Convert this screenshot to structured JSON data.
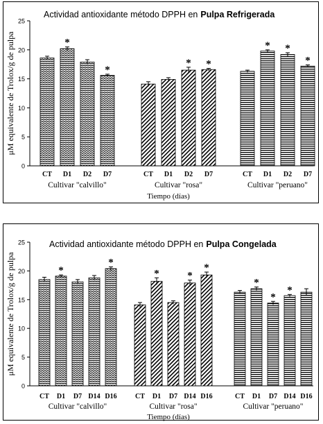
{
  "colors": {
    "ink": "#000000",
    "background": "#ffffff"
  },
  "chart_data": [
    {
      "type": "bar",
      "title": "Actividad antioxidante método DPPH en",
      "title_bold": "Pulpa Refrigerada",
      "ylabel": "μM equivalente de Trolox/g de pulpa",
      "xlabel": "Tiempo  (días)",
      "ylim": [
        0,
        25
      ],
      "yticks": [
        "0",
        "5",
        "10",
        "15",
        "20",
        "25"
      ],
      "grid": false,
      "groups": [
        {
          "name": "Cultivar \"calvillo\"",
          "pattern": "wave",
          "categories": [
            "CT",
            "D1",
            "D2",
            "D7"
          ],
          "values": [
            18.6,
            20.2,
            17.9,
            15.6
          ],
          "errors": [
            0.3,
            0.3,
            0.4,
            0.2
          ],
          "significance": [
            "",
            "*",
            "",
            "*"
          ]
        },
        {
          "name": "Cultivar \"rosa\"",
          "pattern": "diagonal",
          "categories": [
            "CT",
            "D1",
            "D2",
            "D7"
          ],
          "values": [
            14.1,
            14.9,
            16.5,
            16.6
          ],
          "errors": [
            0.4,
            0.3,
            0.5,
            0.2
          ],
          "significance": [
            "",
            "",
            "*",
            "*"
          ]
        },
        {
          "name": "Cultivar \"peruano\"",
          "pattern": "horizontal",
          "categories": [
            "CT",
            "D1",
            "D2",
            "D7"
          ],
          "values": [
            16.3,
            19.8,
            19.2,
            17.2
          ],
          "errors": [
            0.2,
            0.2,
            0.3,
            0.2
          ],
          "significance": [
            "",
            "*",
            "*",
            "*"
          ]
        }
      ]
    },
    {
      "type": "bar",
      "title": "Actividad antioxidante método DPPH en",
      "title_bold": "Pulpa Congelada",
      "ylabel": "μM equivalente de Trolox/g de pulpa",
      "xlabel": "Tiempo  (días)",
      "ylim": [
        0,
        25
      ],
      "yticks": [
        "0",
        "5",
        "10",
        "15",
        "20",
        "25"
      ],
      "grid": false,
      "groups": [
        {
          "name": "Cultivar \"calvillo\"",
          "pattern": "wave",
          "categories": [
            "CT",
            "D1",
            "D7",
            "D14",
            "D16"
          ],
          "values": [
            18.5,
            19.1,
            18.1,
            18.8,
            20.4
          ],
          "errors": [
            0.4,
            0.2,
            0.4,
            0.4,
            0.3
          ],
          "significance": [
            "",
            "*",
            "",
            "",
            "*"
          ]
        },
        {
          "name": "Cultivar \"rosa\"",
          "pattern": "diagonal",
          "categories": [
            "CT",
            "D1",
            "D7",
            "D14",
            "D16"
          ],
          "values": [
            14.1,
            18.2,
            14.5,
            17.9,
            19.3
          ],
          "errors": [
            0.4,
            0.6,
            0.3,
            0.5,
            0.5
          ],
          "significance": [
            "",
            "*",
            "",
            "*",
            "*"
          ]
        },
        {
          "name": "Cultivar \"peruano\"",
          "pattern": "horizontal",
          "categories": [
            "CT",
            "D1",
            "D7",
            "D14",
            "D16"
          ],
          "values": [
            16.3,
            16.9,
            14.4,
            15.7,
            16.3
          ],
          "errors": [
            0.3,
            0.3,
            0.3,
            0.2,
            0.6
          ],
          "significance": [
            "",
            "*",
            "*",
            "*",
            ""
          ]
        }
      ]
    }
  ]
}
